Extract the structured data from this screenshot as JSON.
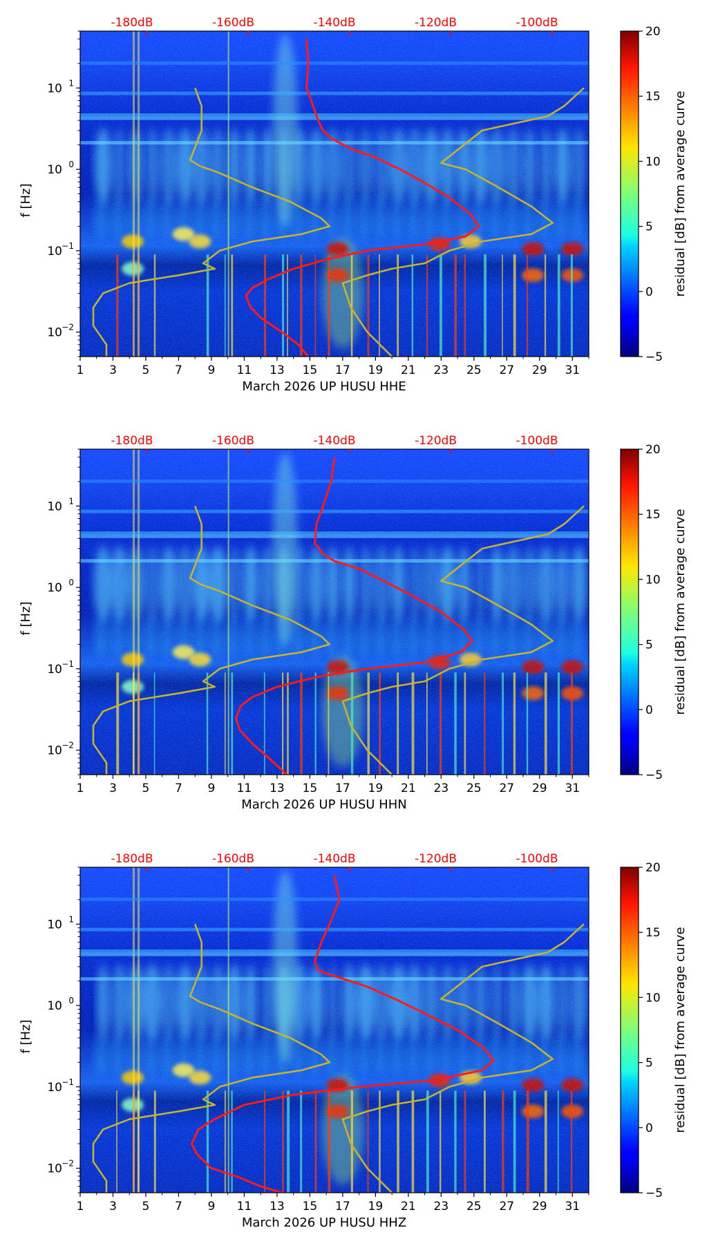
{
  "chart_data": [
    {
      "type": "heatmap",
      "xlabel": "March 2026 UP HUSU  HHE",
      "ylabel": "f [Hz]",
      "x_ticks": [
        "1",
        "3",
        "5",
        "7",
        "9",
        "11",
        "13",
        "15",
        "17",
        "19",
        "21",
        "23",
        "25",
        "27",
        "29",
        "31"
      ],
      "xlim": [
        1,
        32
      ],
      "y_scale": "log",
      "ylim": [
        0.005,
        50
      ],
      "y_ticks": [
        {
          "mant": "10",
          "exp": "1"
        },
        {
          "mant": "10",
          "exp": "0"
        },
        {
          "mant": "10",
          "exp": "−1"
        },
        {
          "mant": "10",
          "exp": "−2"
        }
      ],
      "top_axis_ticks": [
        "-180dB",
        "-160dB",
        "-140dB",
        "-120dB",
        "-100dB"
      ],
      "top_axis_color": "#ff0000",
      "colorbar": {
        "label": "residual [dB] from average curve",
        "ticks": [
          "20",
          "15",
          "10",
          "5",
          "0",
          "−5"
        ],
        "range": [
          -5,
          20
        ],
        "colormap": "jet"
      },
      "series": [
        {
          "color": "#ff1a1a",
          "x": [
            14.8,
            14.9,
            14.8,
            15.2,
            15.5,
            15.8,
            16.3,
            17.5,
            19,
            20.5,
            21.9,
            23.5,
            24.8,
            25.3,
            24.5,
            22,
            18.5,
            16.2,
            14,
            12.5,
            11.5,
            11.1,
            11.4,
            12,
            13.3,
            14.3,
            14.9
          ],
          "f": [
            40,
            20,
            10,
            6,
            4,
            3,
            2.4,
            1.8,
            1.4,
            1.0,
            0.7,
            0.45,
            0.28,
            0.2,
            0.15,
            0.12,
            0.1,
            0.08,
            0.06,
            0.045,
            0.035,
            0.028,
            0.02,
            0.015,
            0.01,
            0.007,
            0.005
          ]
        },
        {
          "color": "#c8b22e",
          "x": [
            8.0,
            8.4,
            8.4,
            7.7,
            8.3,
            9.5,
            11.5,
            13.8,
            15.7,
            16.2,
            14.5,
            11.5,
            9.5,
            8.5,
            9.2,
            7,
            4,
            2.4,
            1.8,
            1.8,
            2.6,
            2.6
          ],
          "f": [
            10,
            6,
            3,
            1.3,
            1.1,
            0.9,
            0.6,
            0.4,
            0.25,
            0.2,
            0.16,
            0.13,
            0.1,
            0.07,
            0.06,
            0.05,
            0.04,
            0.03,
            0.02,
            0.012,
            0.007,
            0.005
          ]
        },
        {
          "color": "#c8b22e",
          "x": [
            31.7,
            30.5,
            29.5,
            27,
            25.5,
            23.0,
            24.5,
            26.5,
            28.5,
            29.8,
            28.5,
            25.5,
            23.5,
            22,
            20,
            18.5,
            17,
            17.5,
            18.5,
            20
          ],
          "f": [
            10,
            6,
            4.5,
            3.5,
            3,
            1.2,
            1.0,
            0.6,
            0.35,
            0.22,
            0.16,
            0.13,
            0.1,
            0.07,
            0.06,
            0.05,
            0.04,
            0.02,
            0.01,
            0.005
          ]
        }
      ]
    },
    {
      "type": "heatmap",
      "xlabel": "March 2026 UP HUSU  HHN",
      "ylabel": "f [Hz]",
      "x_ticks": [
        "1",
        "3",
        "5",
        "7",
        "9",
        "11",
        "13",
        "15",
        "17",
        "19",
        "21",
        "23",
        "25",
        "27",
        "29",
        "31"
      ],
      "xlim": [
        1,
        32
      ],
      "y_scale": "log",
      "ylim": [
        0.005,
        50
      ],
      "y_ticks": [
        {
          "mant": "10",
          "exp": "1"
        },
        {
          "mant": "10",
          "exp": "0"
        },
        {
          "mant": "10",
          "exp": "−1"
        },
        {
          "mant": "10",
          "exp": "−2"
        }
      ],
      "top_axis_ticks": [
        "-180dB",
        "-160dB",
        "-140dB",
        "-120dB",
        "-100dB"
      ],
      "top_axis_color": "#ff0000",
      "colorbar": {
        "label": "residual [dB] from average curve",
        "ticks": [
          "20",
          "15",
          "10",
          "5",
          "0",
          "−5"
        ],
        "range": [
          -5,
          20
        ],
        "colormap": "jet"
      },
      "series": [
        {
          "color": "#ff1a1a",
          "x": [
            16.5,
            16.3,
            15.8,
            15.4,
            15.3,
            15.8,
            16.5,
            18,
            19.5,
            21.2,
            23,
            24.4,
            24.9,
            24.2,
            22,
            18.5,
            15.5,
            13,
            11.5,
            10.8,
            10.5,
            10.7,
            11.5,
            12.5,
            13.6
          ],
          "f": [
            40,
            20,
            10,
            6,
            3.5,
            2.6,
            2.1,
            1.7,
            1.2,
            0.8,
            0.5,
            0.3,
            0.22,
            0.16,
            0.12,
            0.1,
            0.08,
            0.06,
            0.045,
            0.035,
            0.025,
            0.018,
            0.012,
            0.008,
            0.005
          ]
        },
        {
          "color": "#c8b22e",
          "x": [
            8.0,
            8.4,
            8.4,
            7.7,
            8.3,
            9.5,
            11.5,
            13.8,
            15.7,
            16.2,
            14.5,
            11.5,
            9.5,
            8.5,
            9.2,
            7,
            4,
            2.4,
            1.8,
            1.8,
            2.6,
            2.6
          ],
          "f": [
            10,
            6,
            3,
            1.3,
            1.1,
            0.9,
            0.6,
            0.4,
            0.25,
            0.2,
            0.16,
            0.13,
            0.1,
            0.07,
            0.06,
            0.05,
            0.04,
            0.03,
            0.02,
            0.012,
            0.007,
            0.005
          ]
        },
        {
          "color": "#c8b22e",
          "x": [
            31.7,
            30.5,
            29.5,
            27,
            25.5,
            23.0,
            24.5,
            26.5,
            28.5,
            29.8,
            28.5,
            25.5,
            23.5,
            22,
            20,
            18.5,
            17,
            17.5,
            18.5,
            20
          ],
          "f": [
            10,
            6,
            4.5,
            3.5,
            3,
            1.2,
            1.0,
            0.6,
            0.35,
            0.22,
            0.16,
            0.13,
            0.1,
            0.07,
            0.06,
            0.05,
            0.04,
            0.02,
            0.01,
            0.005
          ]
        }
      ]
    },
    {
      "type": "heatmap",
      "xlabel": "March 2026 UP HUSU  HHZ",
      "ylabel": "f [Hz]",
      "x_ticks": [
        "1",
        "3",
        "5",
        "7",
        "9",
        "11",
        "13",
        "15",
        "17",
        "19",
        "21",
        "23",
        "25",
        "27",
        "29",
        "31"
      ],
      "xlim": [
        1,
        32
      ],
      "y_scale": "log",
      "ylim": [
        0.005,
        50
      ],
      "y_ticks": [
        {
          "mant": "10",
          "exp": "1"
        },
        {
          "mant": "10",
          "exp": "0"
        },
        {
          "mant": "10",
          "exp": "−1"
        },
        {
          "mant": "10",
          "exp": "−2"
        }
      ],
      "top_axis_ticks": [
        "-180dB",
        "-160dB",
        "-140dB",
        "-120dB",
        "-100dB"
      ],
      "top_axis_color": "#ff0000",
      "colorbar": {
        "label": "residual [dB] from average curve",
        "ticks": [
          "20",
          "15",
          "10",
          "5",
          "0",
          "−5"
        ],
        "range": [
          -5,
          20
        ],
        "colormap": "jet"
      },
      "series": [
        {
          "color": "#ff1a1a",
          "x": [
            16.5,
            16.8,
            16.2,
            15.7,
            15.3,
            15.5,
            16.8,
            18.5,
            20.2,
            22,
            24,
            25.6,
            26.2,
            25.5,
            22.5,
            18,
            14,
            11,
            9.2,
            8.2,
            7.8,
            8.1,
            9,
            10.5,
            12,
            13.3
          ],
          "f": [
            40,
            20,
            10,
            6,
            3.5,
            2.7,
            2.2,
            1.7,
            1.2,
            0.8,
            0.5,
            0.3,
            0.21,
            0.16,
            0.12,
            0.1,
            0.08,
            0.06,
            0.04,
            0.03,
            0.02,
            0.015,
            0.01,
            0.008,
            0.006,
            0.005
          ]
        },
        {
          "color": "#c8b22e",
          "x": [
            8.0,
            8.4,
            8.4,
            7.7,
            8.3,
            9.5,
            11.5,
            13.8,
            15.7,
            16.2,
            14.5,
            11.5,
            9.5,
            8.5,
            9.2,
            7,
            4,
            2.4,
            1.8,
            1.8,
            2.6,
            2.6
          ],
          "f": [
            10,
            6,
            3,
            1.3,
            1.1,
            0.9,
            0.6,
            0.4,
            0.25,
            0.2,
            0.16,
            0.13,
            0.1,
            0.07,
            0.06,
            0.05,
            0.04,
            0.03,
            0.02,
            0.012,
            0.007,
            0.005
          ]
        },
        {
          "color": "#c8b22e",
          "x": [
            31.7,
            30.5,
            29.5,
            27,
            25.5,
            23.0,
            24.5,
            26.5,
            28.5,
            29.8,
            28.5,
            25.5,
            23.5,
            22,
            20,
            18.5,
            17,
            17.5,
            18.5,
            20
          ],
          "f": [
            10,
            6,
            4.5,
            3.5,
            3,
            1.2,
            1.0,
            0.6,
            0.35,
            0.22,
            0.16,
            0.13,
            0.1,
            0.07,
            0.06,
            0.05,
            0.04,
            0.02,
            0.01,
            0.005
          ]
        }
      ]
    }
  ]
}
